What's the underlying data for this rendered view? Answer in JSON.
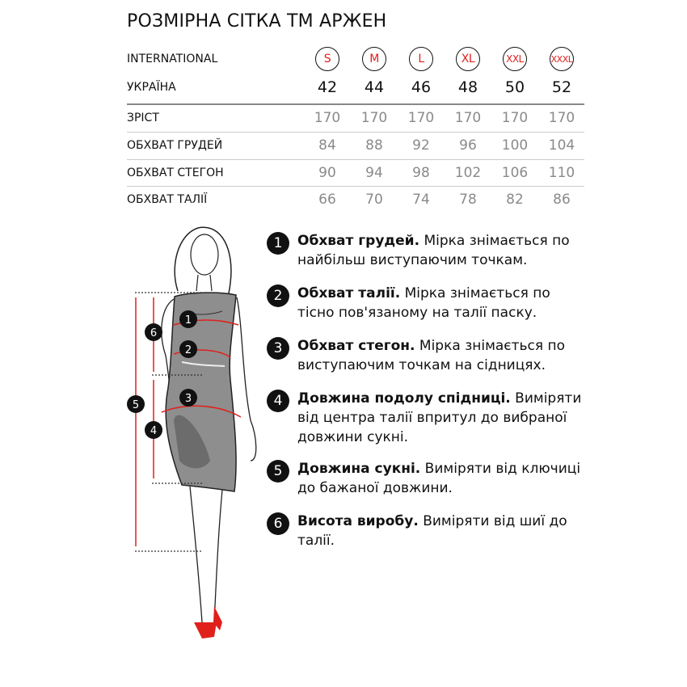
{
  "title": "РОЗМІРНА СІТКА ТМ АРЖЕН",
  "accent_color": "#e0201b",
  "table": {
    "international": {
      "label": "INTERNATIONAL",
      "values": [
        "S",
        "M",
        "L",
        "XL",
        "XXL",
        "XXXL"
      ]
    },
    "ukraine": {
      "label": "УКРАЇНА",
      "values": [
        "42",
        "44",
        "46",
        "48",
        "50",
        "52"
      ]
    },
    "rows": [
      {
        "label": "ЗРІСТ",
        "values": [
          "170",
          "170",
          "170",
          "170",
          "170",
          "170"
        ]
      },
      {
        "label": "ОБХВАТ ГРУДЕЙ",
        "values": [
          "84",
          "88",
          "92",
          "96",
          "100",
          "104"
        ]
      },
      {
        "label": "ОБХВАТ СТЕГОН",
        "values": [
          "90",
          "94",
          "98",
          "102",
          "106",
          "110"
        ]
      },
      {
        "label": "ОБХВАТ ТАЛІЇ",
        "values": [
          "66",
          "70",
          "74",
          "78",
          "82",
          "86"
        ]
      }
    ]
  },
  "figure": {
    "markers": [
      "1",
      "2",
      "3",
      "4",
      "5",
      "6"
    ]
  },
  "items": [
    {
      "num": "1",
      "title": "Обхват грудей.",
      "text": " Мірка знімається по найбільш виступаючим точкам."
    },
    {
      "num": "2",
      "title": "Обхват талії.",
      "text": " Мірка знімається по тісно пов'язаному на талії паску."
    },
    {
      "num": "3",
      "title": "Обхват стегон.",
      "text": " Мірка знімається по виступаючим точкам на сідницях."
    },
    {
      "num": "4",
      "title": "Довжина подолу спідниці.",
      "text": " Виміряти від центра талії впритул до вибраної довжини сукні."
    },
    {
      "num": "5",
      "title": "Довжина сукні.",
      "text": " Виміряти від ключиці до бажаної довжини."
    },
    {
      "num": "6",
      "title": "Висота виробу.",
      "text": " Виміряти від шиї до талії."
    }
  ]
}
